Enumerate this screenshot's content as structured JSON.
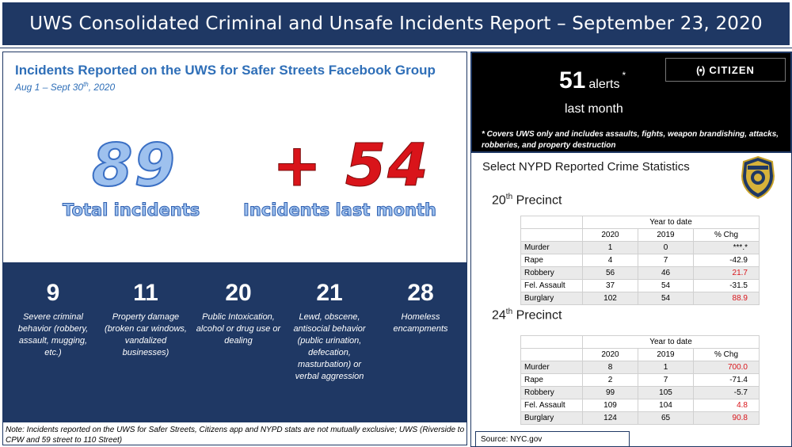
{
  "header": {
    "title": "UWS Consolidated Criminal and Unsafe Incidents Report – September 23, 2020"
  },
  "facebook": {
    "title": "Incidents Reported on the UWS for Safer Streets Facebook Group",
    "date_prefix": "Aug 1 – Sept 30",
    "date_sup": "th",
    "date_suffix": ", 2020",
    "total_value": "89",
    "total_label": "Total incidents",
    "last_month_value": "+ 54",
    "last_month_label": "Incidents last month"
  },
  "categories": [
    {
      "value": "9",
      "label": "Severe criminal behavior (robbery, assault, mugging, etc.)"
    },
    {
      "value": "11",
      "label": "Property damage (broken car windows, vandalized businesses)"
    },
    {
      "value": "20",
      "label": "Public Intoxication, alcohol or drug use or dealing"
    },
    {
      "value": "21",
      "label": "Lewd, obscene, antisocial behavior (public urination, defecation, masturbation) or verbal aggression"
    },
    {
      "value": "28",
      "label": "Homeless encampments"
    }
  ],
  "note": "Note: Incidents reported on the UWS for Safer Streets, Citizens app and NYPD stats are not mutually exclusive; UWS (Riverside to CPW and 59 street to 110 Street)",
  "citizen": {
    "brand": "CITIZEN",
    "logo_glyph": "(•)",
    "alerts_value": "51",
    "alerts_word": "alerts",
    "alerts_star": "*",
    "alerts_sub": "last month",
    "footnote": "* Covers UWS only and includes assaults, fights, weapon brandishing, attacks, robberies, and property destruction"
  },
  "nypd": {
    "title": "Select NYPD Reported Crime Statistics",
    "badge_icon": "police-badge-icon",
    "source": "Source: NYC.gov",
    "precincts": [
      {
        "name_num": "20",
        "name_sup": "th",
        "name_word": "Precinct",
        "ytd_header": "Year to date",
        "col_2020": "2020",
        "col_2019": "2019",
        "col_chg": "% Chg",
        "rows": [
          {
            "crime": "Murder",
            "v2020": "1",
            "v2019": "0",
            "chg": "***.*",
            "red": false
          },
          {
            "crime": "Rape",
            "v2020": "4",
            "v2019": "7",
            "chg": "-42.9",
            "red": false
          },
          {
            "crime": "Robbery",
            "v2020": "56",
            "v2019": "46",
            "chg": "21.7",
            "red": true
          },
          {
            "crime": "Fel. Assault",
            "v2020": "37",
            "v2019": "54",
            "chg": "-31.5",
            "red": false
          },
          {
            "crime": "Burglary",
            "v2020": "102",
            "v2019": "54",
            "chg": "88.9",
            "red": true
          }
        ]
      },
      {
        "name_num": "24",
        "name_sup": "th",
        "name_word": "Precinct",
        "ytd_header": "Year to date",
        "col_2020": "2020",
        "col_2019": "2019",
        "col_chg": "% Chg",
        "rows": [
          {
            "crime": "Murder",
            "v2020": "8",
            "v2019": "1",
            "chg": "700.0",
            "red": true
          },
          {
            "crime": "Rape",
            "v2020": "2",
            "v2019": "7",
            "chg": "-71.4",
            "red": false
          },
          {
            "crime": "Robbery",
            "v2020": "99",
            "v2019": "105",
            "chg": "-5.7",
            "red": false
          },
          {
            "crime": "Fel. Assault",
            "v2020": "109",
            "v2019": "104",
            "chg": "4.8",
            "red": true
          },
          {
            "crime": "Burglary",
            "v2020": "124",
            "v2019": "65",
            "chg": "90.8",
            "red": true
          }
        ]
      }
    ]
  },
  "colors": {
    "navy": "#1f3864",
    "accent_blue": "#2f6fb8",
    "red": "#d9141a",
    "black": "#000000"
  }
}
